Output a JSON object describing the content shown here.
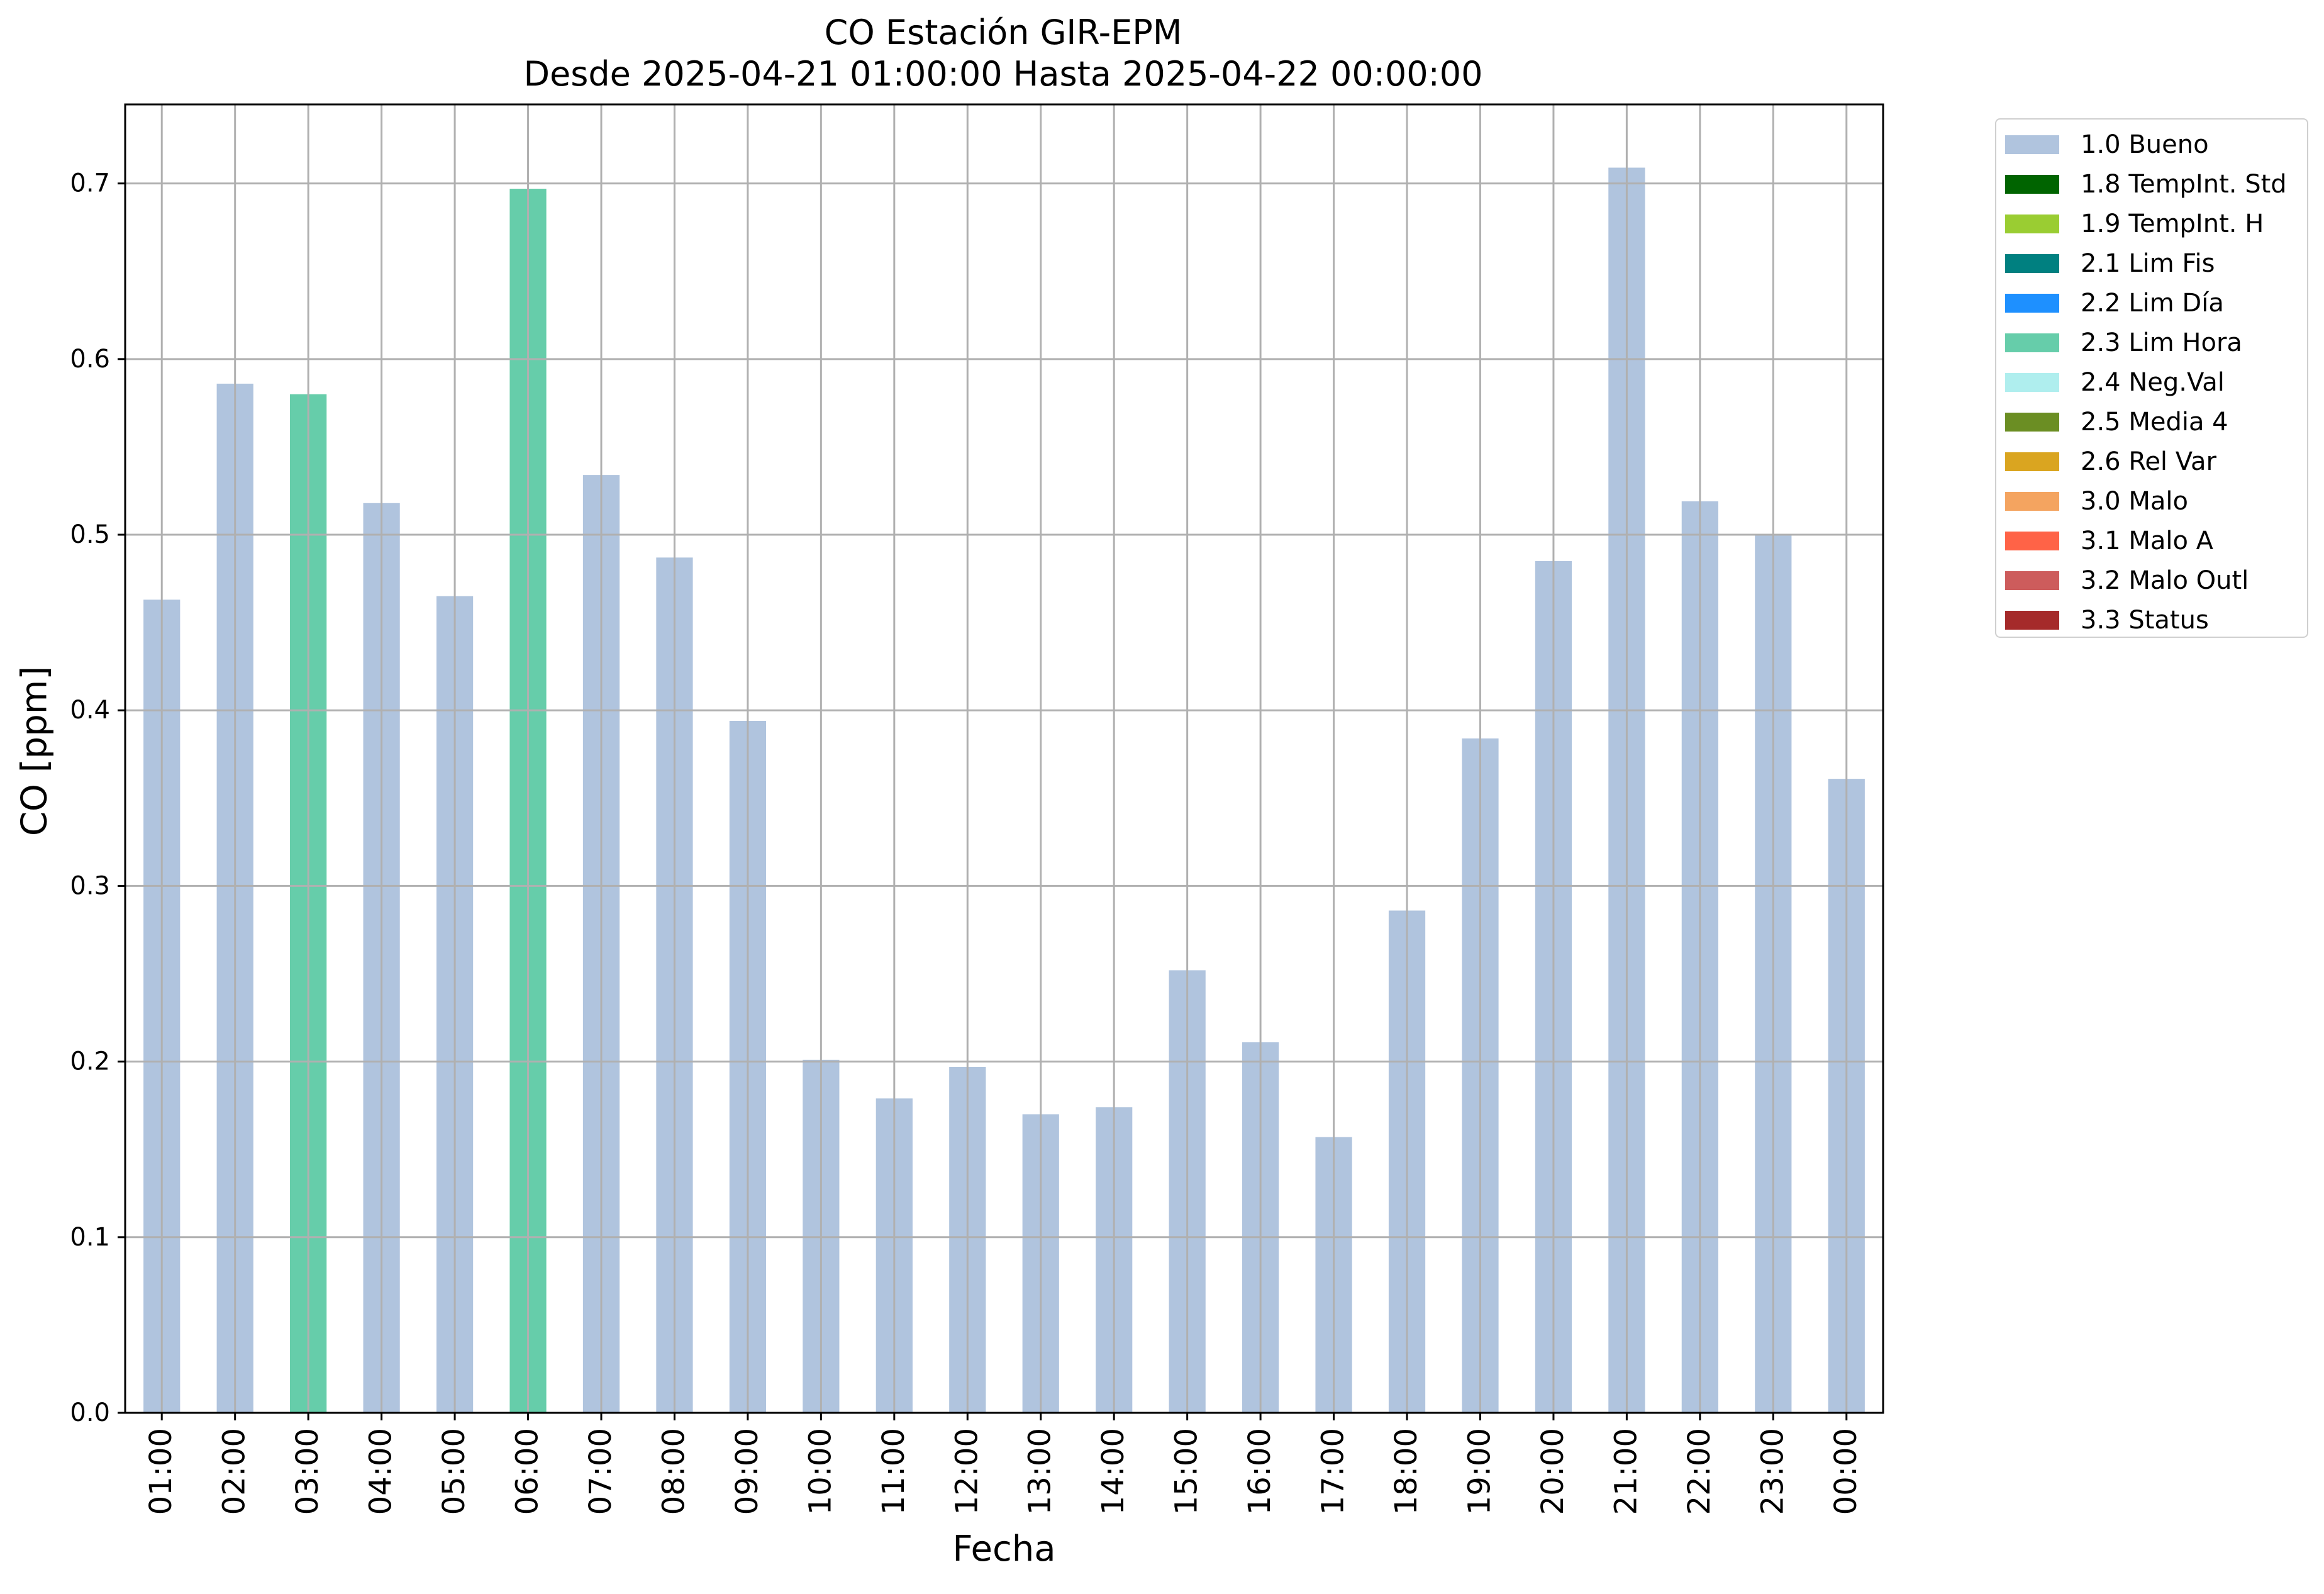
{
  "chart_data": {
    "type": "bar",
    "title": "CO Estación GIR-EPM",
    "subtitle": "Desde 2025-04-21 01:00:00 Hasta 2025-04-22 00:00:00",
    "xlabel": "Fecha",
    "ylabel": "CO [ppm]",
    "ylim": [
      0,
      0.745
    ],
    "yticks": [
      "0.0",
      "0.1",
      "0.2",
      "0.3",
      "0.4",
      "0.5",
      "0.6",
      "0.7"
    ],
    "grid": true,
    "legend_position": "outside-top-right",
    "categories": [
      "01:00",
      "02:00",
      "03:00",
      "04:00",
      "05:00",
      "06:00",
      "07:00",
      "08:00",
      "09:00",
      "10:00",
      "11:00",
      "12:00",
      "13:00",
      "14:00",
      "15:00",
      "16:00",
      "17:00",
      "18:00",
      "19:00",
      "20:00",
      "21:00",
      "22:00",
      "23:00",
      "00:00"
    ],
    "values": [
      0.463,
      0.586,
      0.58,
      0.518,
      0.465,
      0.697,
      0.534,
      0.487,
      0.394,
      0.201,
      0.179,
      0.197,
      0.17,
      0.174,
      0.252,
      0.211,
      0.157,
      0.286,
      0.384,
      0.485,
      0.709,
      0.519,
      0.5,
      0.361
    ],
    "flags": [
      "1.0 Bueno",
      "1.0 Bueno",
      "2.3 Lim Hora",
      "1.0 Bueno",
      "1.0 Bueno",
      "2.3 Lim Hora",
      "1.0 Bueno",
      "1.0 Bueno",
      "1.0 Bueno",
      "1.0 Bueno",
      "1.0 Bueno",
      "1.0 Bueno",
      "1.0 Bueno",
      "1.0 Bueno",
      "1.0 Bueno",
      "1.0 Bueno",
      "1.0 Bueno",
      "1.0 Bueno",
      "1.0 Bueno",
      "1.0 Bueno",
      "1.0 Bueno",
      "1.0 Bueno",
      "1.0 Bueno",
      "1.0 Bueno"
    ],
    "legend": [
      {
        "label": "1.0 Bueno",
        "color": "#b0c4de"
      },
      {
        "label": "1.8 TempInt. Std",
        "color": "#006400"
      },
      {
        "label": "1.9 TempInt. H",
        "color": "#9acd32"
      },
      {
        "label": "2.1 Lim Fis",
        "color": "#008080"
      },
      {
        "label": "2.2 Lim Día",
        "color": "#1e90ff"
      },
      {
        "label": "2.3 Lim Hora",
        "color": "#66cdaa"
      },
      {
        "label": "2.4 Neg.Val",
        "color": "#afeeee"
      },
      {
        "label": "2.5 Media 4",
        "color": "#6b8e23"
      },
      {
        "label": "2.6 Rel Var",
        "color": "#daa520"
      },
      {
        "label": "3.0 Malo",
        "color": "#f4a460"
      },
      {
        "label": "3.1 Malo A",
        "color": "#ff6347"
      },
      {
        "label": "3.2 Malo Outl",
        "color": "#cd5c5c"
      },
      {
        "label": "3.3 Status",
        "color": "#a52a2a"
      }
    ]
  }
}
